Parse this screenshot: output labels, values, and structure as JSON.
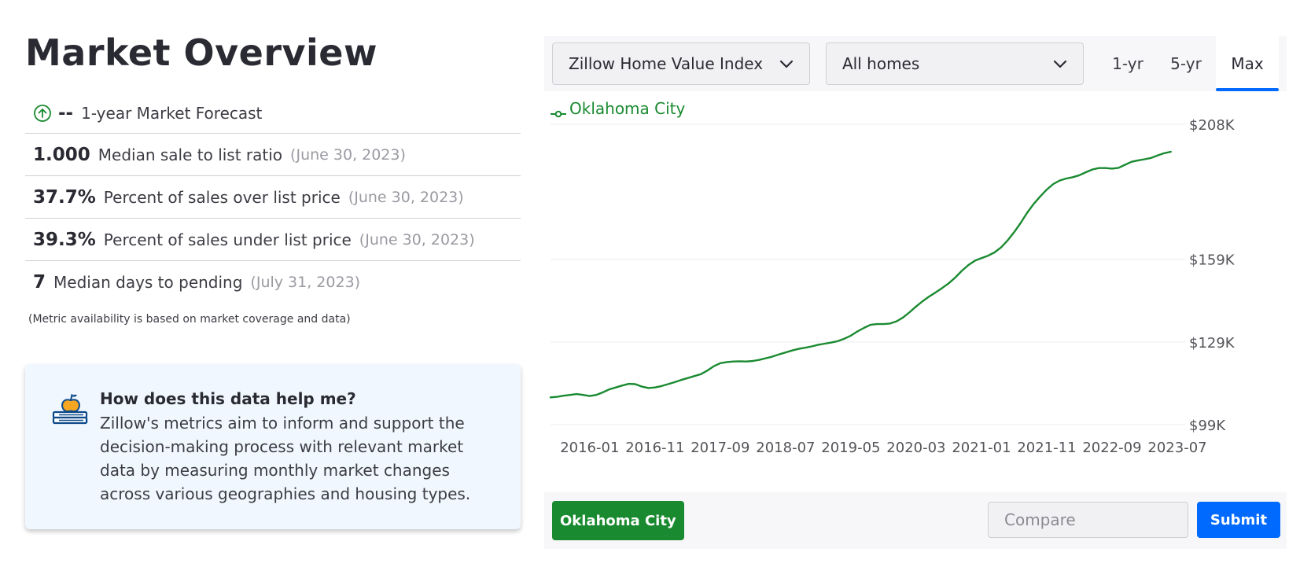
{
  "page": {
    "title": "Market Overview"
  },
  "forecast": {
    "icon": "arrow-up-circle-icon",
    "value": "--",
    "label": "1-year Market Forecast"
  },
  "metrics": [
    {
      "value": "1.000",
      "label": "Median sale to list ratio",
      "date": "(June 30, 2023)"
    },
    {
      "value": "37.7%",
      "label": "Percent of sales over list price",
      "date": "(June 30, 2023)"
    },
    {
      "value": "39.3%",
      "label": "Percent of sales under list price",
      "date": "(June 30, 2023)"
    },
    {
      "value": "7",
      "label": "Median days to pending",
      "date": "(July 31, 2023)"
    }
  ],
  "note": "(Metric availability is based on market coverage and data)",
  "help": {
    "icon": "apple-books-icon",
    "title": "How does this data help me?",
    "body": "Zillow's metrics aim to inform and support the decision-making process with relevant market data by measuring monthly market changes across various geographies and housing types."
  },
  "controls": {
    "metric_dropdown": "Zillow Home Value Index",
    "home_type_dropdown": "All homes",
    "range_tabs": [
      "1-yr",
      "5-yr",
      "Max"
    ],
    "selected_range": "Max"
  },
  "bottom": {
    "city_chip": "Oklahoma City",
    "compare_placeholder": "Compare",
    "submit_label": "Submit"
  },
  "colors": {
    "series": "#1a8a30",
    "accent": "#006aff",
    "grid": "#ececf0"
  },
  "chart_data": {
    "type": "line",
    "title": "",
    "xlabel": "",
    "ylabel": "",
    "ylim": [
      99000,
      208000
    ],
    "y_ticks": [
      {
        "value": 208000,
        "label": "$208K"
      },
      {
        "value": 159000,
        "label": "$159K"
      },
      {
        "value": 129000,
        "label": "$129K"
      },
      {
        "value": 99000,
        "label": "$99K"
      }
    ],
    "x_ticks": [
      "2016-01",
      "2016-11",
      "2017-09",
      "2018-07",
      "2019-05",
      "2020-03",
      "2021-01",
      "2021-11",
      "2022-09",
      "2023-07"
    ],
    "grid": true,
    "legend": "top-left",
    "series": [
      {
        "name": "Oklahoma City",
        "points": [
          [
            "2015-07",
            108900
          ],
          [
            "2015-08",
            109100
          ],
          [
            "2015-09",
            109500
          ],
          [
            "2015-10",
            109800
          ],
          [
            "2015-11",
            110100
          ],
          [
            "2015-12",
            109800
          ],
          [
            "2016-01",
            109400
          ],
          [
            "2016-02",
            109800
          ],
          [
            "2016-03",
            110700
          ],
          [
            "2016-04",
            111800
          ],
          [
            "2016-05",
            112500
          ],
          [
            "2016-06",
            113200
          ],
          [
            "2016-07",
            113800
          ],
          [
            "2016-08",
            113700
          ],
          [
            "2016-09",
            112800
          ],
          [
            "2016-10",
            112300
          ],
          [
            "2016-11",
            112500
          ],
          [
            "2016-12",
            113000
          ],
          [
            "2017-01",
            113700
          ],
          [
            "2017-02",
            114400
          ],
          [
            "2017-03",
            115200
          ],
          [
            "2017-04",
            115900
          ],
          [
            "2017-05",
            116600
          ],
          [
            "2017-06",
            117300
          ],
          [
            "2017-07",
            118600
          ],
          [
            "2017-08",
            120200
          ],
          [
            "2017-09",
            121300
          ],
          [
            "2017-10",
            121700
          ],
          [
            "2017-11",
            121900
          ],
          [
            "2017-12",
            122000
          ],
          [
            "2018-01",
            121900
          ],
          [
            "2018-02",
            122100
          ],
          [
            "2018-03",
            122500
          ],
          [
            "2018-04",
            123100
          ],
          [
            "2018-05",
            123700
          ],
          [
            "2018-06",
            124500
          ],
          [
            "2018-07",
            125200
          ],
          [
            "2018-08",
            125900
          ],
          [
            "2018-09",
            126500
          ],
          [
            "2018-10",
            126900
          ],
          [
            "2018-11",
            127400
          ],
          [
            "2018-12",
            128000
          ],
          [
            "2019-01",
            128400
          ],
          [
            "2019-02",
            128800
          ],
          [
            "2019-03",
            129300
          ],
          [
            "2019-04",
            130200
          ],
          [
            "2019-05",
            131300
          ],
          [
            "2019-06",
            132800
          ],
          [
            "2019-07",
            134100
          ],
          [
            "2019-08",
            135200
          ],
          [
            "2019-09",
            135500
          ],
          [
            "2019-10",
            135500
          ],
          [
            "2019-11",
            135700
          ],
          [
            "2019-12",
            136500
          ],
          [
            "2020-01",
            137900
          ],
          [
            "2020-02",
            139800
          ],
          [
            "2020-03",
            141900
          ],
          [
            "2020-04",
            143800
          ],
          [
            "2020-05",
            145500
          ],
          [
            "2020-06",
            147000
          ],
          [
            "2020-07",
            148600
          ],
          [
            "2020-08",
            150300
          ],
          [
            "2020-09",
            152400
          ],
          [
            "2020-10",
            154800
          ],
          [
            "2020-11",
            156900
          ],
          [
            "2020-12",
            158500
          ],
          [
            "2021-01",
            159400
          ],
          [
            "2021-02",
            160300
          ],
          [
            "2021-03",
            161500
          ],
          [
            "2021-04",
            163300
          ],
          [
            "2021-05",
            165800
          ],
          [
            "2021-06",
            168800
          ],
          [
            "2021-07",
            172200
          ],
          [
            "2021-08",
            175900
          ],
          [
            "2021-09",
            179100
          ],
          [
            "2021-10",
            181800
          ],
          [
            "2021-11",
            184300
          ],
          [
            "2021-12",
            186300
          ],
          [
            "2022-01",
            187600
          ],
          [
            "2022-02",
            188300
          ],
          [
            "2022-03",
            188800
          ],
          [
            "2022-04",
            189500
          ],
          [
            "2022-05",
            190600
          ],
          [
            "2022-06",
            191600
          ],
          [
            "2022-07",
            192100
          ],
          [
            "2022-08",
            192100
          ],
          [
            "2022-09",
            191900
          ],
          [
            "2022-10",
            192200
          ],
          [
            "2022-11",
            193300
          ],
          [
            "2022-12",
            194400
          ],
          [
            "2023-01",
            194900
          ],
          [
            "2023-02",
            195300
          ],
          [
            "2023-03",
            195800
          ],
          [
            "2023-04",
            196700
          ],
          [
            "2023-05",
            197500
          ],
          [
            "2023-06",
            198000
          ]
        ]
      }
    ]
  }
}
